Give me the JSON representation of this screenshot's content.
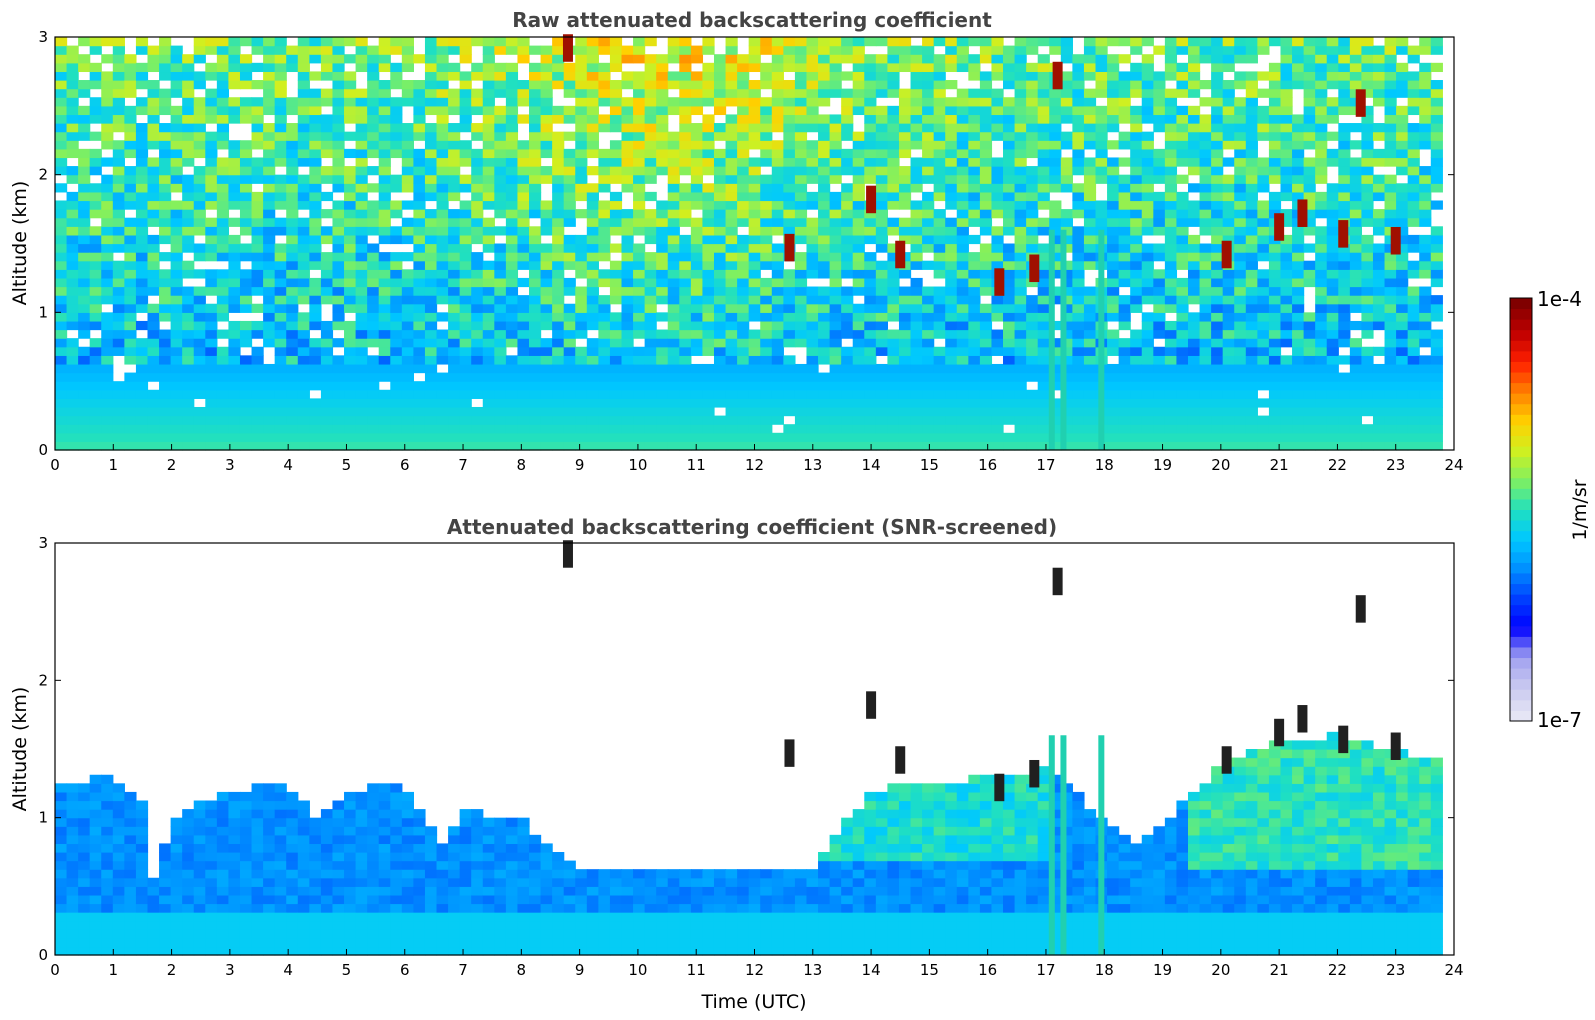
{
  "chart_data": [
    {
      "type": "heatmap",
      "title": "Raw attenuated backscattering coefficient",
      "xlabel": "",
      "ylabel": "Altitude (km)",
      "xlim": [
        0,
        24
      ],
      "ylim": [
        0,
        3
      ],
      "x_ticks": [
        "0",
        "1",
        "2",
        "3",
        "4",
        "5",
        "6",
        "7",
        "8",
        "9",
        "10",
        "11",
        "12",
        "13",
        "14",
        "15",
        "16",
        "17",
        "18",
        "19",
        "20",
        "21",
        "22",
        "23",
        "24"
      ],
      "y_ticks": [
        "0",
        "1",
        "2",
        "3"
      ],
      "color_scale": "log",
      "data_end_time": 23.8,
      "features": [
        {
          "kind": "boundary_layer_top_km",
          "description": "aerosol layer denser below ~0.8 km"
        },
        {
          "kind": "cloud_patches",
          "times_utc": [
            8.8,
            12.6,
            14.0,
            14.5,
            16.2,
            16.8,
            17.2,
            20.1,
            21.0,
            21.4,
            22.1,
            22.4,
            23.0
          ],
          "altitudes_km": [
            2.9,
            1.45,
            1.8,
            1.4,
            1.2,
            1.3,
            2.7,
            1.4,
            1.6,
            1.7,
            1.55,
            2.5,
            1.5
          ]
        },
        {
          "kind": "precipitation_columns",
          "times_utc": [
            17.1,
            17.3,
            17.95
          ],
          "altitude_range_km": [
            0,
            1.6
          ]
        }
      ]
    },
    {
      "type": "heatmap",
      "title": "Attenuated backscattering coefficient (SNR-screened)",
      "xlabel": "Time (UTC)",
      "ylabel": "Altitude (km)",
      "xlim": [
        0,
        24
      ],
      "ylim": [
        0,
        3
      ],
      "x_ticks": [
        "0",
        "1",
        "2",
        "3",
        "4",
        "5",
        "6",
        "7",
        "8",
        "9",
        "10",
        "11",
        "12",
        "13",
        "14",
        "15",
        "16",
        "17",
        "18",
        "19",
        "20",
        "21",
        "22",
        "23",
        "24"
      ],
      "y_ticks": [
        "0",
        "1",
        "2",
        "3"
      ],
      "color_scale": "log",
      "data_end_time": 23.8,
      "screened_top_km": {
        "times_utc": [
          0,
          1,
          1.6,
          1.7,
          2,
          3,
          4,
          4.5,
          5,
          6,
          6.6,
          7,
          8,
          8.5,
          9,
          10,
          11,
          12,
          13,
          14,
          15,
          16,
          17,
          18,
          18.6,
          19,
          20,
          21,
          22,
          23,
          23.8
        ],
        "altitudes_km": [
          1.25,
          1.3,
          1.1,
          0.5,
          1.0,
          1.2,
          1.25,
          1.0,
          1.2,
          1.25,
          0.8,
          1.05,
          1.0,
          0.75,
          0.65,
          0.65,
          0.65,
          0.65,
          0.65,
          1.2,
          1.25,
          1.3,
          1.35,
          1.0,
          0.8,
          0.95,
          1.4,
          1.55,
          1.6,
          1.5,
          1.4
        ]
      }
    }
  ],
  "colorbar": {
    "label": "1/m/sr",
    "max_label": "1e-4",
    "min_label": "1e-7",
    "colors": [
      "#e5e5f5",
      "#c8c8f0",
      "#a0a0f0",
      "#0000ff",
      "#0040ff",
      "#0090ff",
      "#00c8ff",
      "#20e0c0",
      "#80f060",
      "#d0f020",
      "#ffd000",
      "#ff8000",
      "#ff2000",
      "#c00000",
      "#800000"
    ]
  }
}
